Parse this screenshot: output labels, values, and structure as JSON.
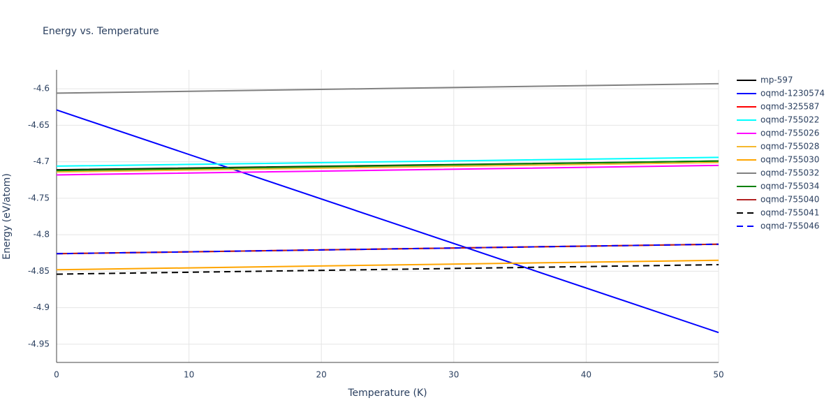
{
  "chart_data": {
    "type": "line",
    "title": "Energy vs. Temperature",
    "xlabel": "Temperature (K)",
    "ylabel": "Energy (eV/atom)",
    "x": [
      0,
      25,
      50
    ],
    "xlim": [
      0,
      50
    ],
    "xticks": [
      0,
      10,
      20,
      30,
      40,
      50
    ],
    "ylim": [
      -4.975,
      -4.574
    ],
    "yticks": [
      -4.6,
      -4.65,
      -4.7,
      -4.75,
      -4.8,
      -4.85,
      -4.9,
      -4.95
    ],
    "grid": true,
    "legend": "right",
    "series": [
      {
        "name": "mp-597",
        "color": "#000000",
        "values": [
          -4.711,
          -4.705,
          -4.699
        ]
      },
      {
        "name": "oqmd-1230574",
        "color": "#0000ff",
        "values": [
          -4.629,
          -4.7815,
          -4.934
        ]
      },
      {
        "name": "oqmd-325587",
        "color": "#ff0000",
        "values": [
          -4.826,
          -4.8195,
          -4.813
        ]
      },
      {
        "name": "oqmd-755022",
        "color": "#00ffff",
        "values": [
          -4.706,
          -4.7,
          -4.694
        ]
      },
      {
        "name": "oqmd-755026",
        "color": "#ff00ff",
        "values": [
          -4.718,
          -4.7115,
          -4.705
        ]
      },
      {
        "name": "oqmd-755028",
        "color": "#f5b82e",
        "values": [
          -4.714,
          -4.7075,
          -4.701
        ]
      },
      {
        "name": "oqmd-755030",
        "color": "#ffa500",
        "values": [
          -4.848,
          -4.8415,
          -4.835
        ]
      },
      {
        "name": "oqmd-755032",
        "color": "#808080",
        "values": [
          -4.606,
          -4.5995,
          -4.593
        ]
      },
      {
        "name": "oqmd-755034",
        "color": "#008000",
        "values": [
          -4.712,
          -4.7055,
          -4.699
        ]
      },
      {
        "name": "oqmd-755040",
        "color": "#b22222",
        "values": [
          -4.826,
          -4.8195,
          -4.813
        ]
      },
      {
        "name": "oqmd-755041",
        "color": "#000000",
        "dash": true,
        "values": [
          -4.854,
          -4.8475,
          -4.841
        ]
      },
      {
        "name": "oqmd-755046",
        "color": "#0000ff",
        "dash": true,
        "values": [
          -4.826,
          -4.8195,
          -4.813
        ]
      }
    ]
  }
}
